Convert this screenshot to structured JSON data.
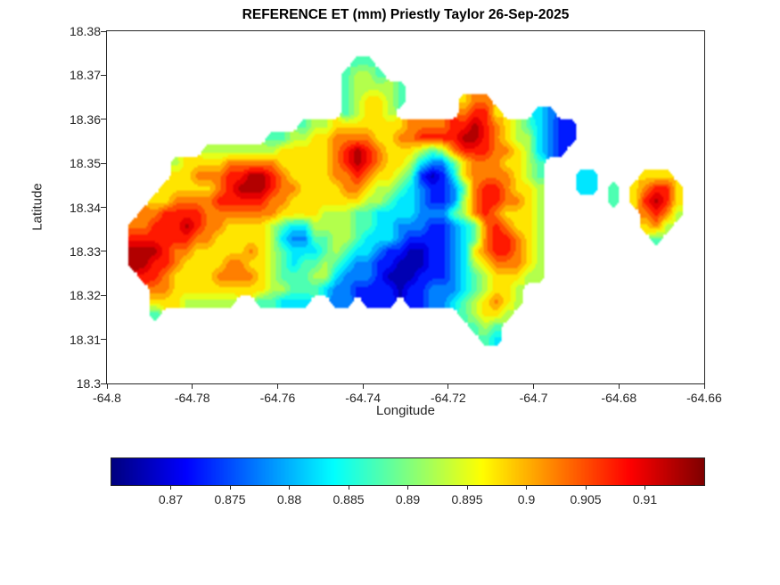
{
  "chart_data": {
    "type": "heatmap",
    "title": "REFERENCE ET (mm) Priestly Taylor 26-Sep-2025",
    "xlabel": "Longitude",
    "ylabel": "Latitude",
    "units": "mm",
    "x_range": [
      -64.8,
      -64.66
    ],
    "y_range": [
      18.3,
      18.38
    ],
    "x_tick_labels": [
      "-64.8",
      "-64.78",
      "-64.76",
      "-64.74",
      "-64.72",
      "-64.7",
      "-64.68",
      "-64.66"
    ],
    "y_tick_labels": [
      "18.3",
      "18.31",
      "18.32",
      "18.33",
      "18.34",
      "18.35",
      "18.36",
      "18.37",
      "18.38"
    ],
    "colormap": "jet",
    "grid_lines": "off",
    "colorbar": {
      "orientation": "horizontal",
      "range": [
        0.865,
        0.915
      ],
      "tick_labels": [
        "0.87",
        "0.875",
        "0.88",
        "0.885",
        "0.89",
        "0.895",
        "0.9",
        "0.905",
        "0.91"
      ]
    },
    "grid": {
      "cols": 56,
      "rows": 28,
      "lon_min": -64.8,
      "lon_step": 0.0025,
      "lat_max": 18.38,
      "lat_step": 0.0028571,
      "encoding": "one char per cell, row 0 = north (lat 18.38); '.' = no data (sea); digit 0-9 = ET level index into level_values_mm",
      "level_values_mm": [
        0.8675,
        0.8725,
        0.8775,
        0.8825,
        0.8875,
        0.8925,
        0.8975,
        0.9025,
        0.9075,
        0.9125
      ],
      "rows_data": [
        "",
        "",
        ".......................44",
        "......................4554",
        "......................455554",
        "......................456654.....677",
        "......................45665......7886...32",
        "..................45566666667777889876543211",
        "...............44556677776677888899876553211",
        ".........5555555666667898766654578887765321",
        "......56666777776666678987665322467776654",
        "......66777889987666677876654101367777654...33....666",
        ".....666667899987766667765543211247887665...33.4.67886",
        "....6677778888877666666655433211257887765......4.68986",
        "...77888877777776666555443333222457876665.........7875",
        "..778889877666654335555443322211234787665.........675",
        "..888888776666653224455433321111234788765..........4",
        "..999877666667654333454332110011236788765",
        "..998876666776654344543221100011235677765",
        "...88766667777654445532221000111234566655",
        "....77666666666554443221111011222345665",
        "....66655555..44333..22.111.11223456765",
        "....4............................45665",
        "..................................454",
        "...................................43",
        "",
        "",
        ""
      ]
    }
  }
}
